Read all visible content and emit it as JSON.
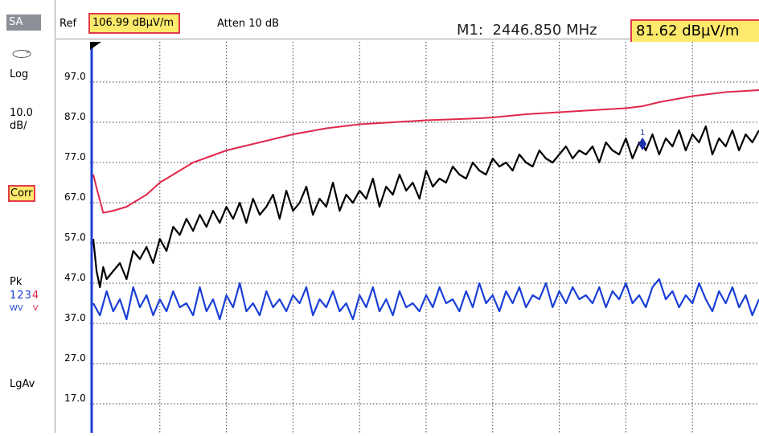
{
  "left_panel": {
    "mode_tab": "SA",
    "scale_type": "Log",
    "scale_value": "10.0",
    "scale_unit": "dB/",
    "correction": "Corr",
    "detector": "Pk",
    "traces": {
      "digits": [
        "1",
        "2",
        "3",
        "4"
      ],
      "digit_colors": [
        "#1a3fd6",
        "#1a3fd6",
        "#1a3fd6",
        "#e0284a"
      ],
      "modes": [
        "W",
        "V",
        "V"
      ],
      "mode_colors": [
        "#1a3fd6",
        "#1a3fd6",
        "#e0284a"
      ]
    },
    "averaging": "LgAv"
  },
  "header": {
    "ref_label": "Ref",
    "ref_value": "106.99 dBµV/m",
    "atten": "Atten 10 dB",
    "marker_label": "M1:",
    "marker_freq": "2446.850 MHz",
    "marker_amp": "81.62 dBµV/m"
  },
  "chart_data": {
    "type": "line",
    "y_ticks": [
      "97.0",
      "87.0",
      "77.0",
      "67.0",
      "57.0",
      "47.0",
      "37.0",
      "27.0",
      "17.0"
    ],
    "ylim": [
      12.0,
      102.0
    ],
    "xlim": [
      0,
      100
    ],
    "grid": true,
    "marker": {
      "name": "1",
      "x": 82.5,
      "y": 81.62
    },
    "series": [
      {
        "color": "#e0284a",
        "x": [
          0,
          0.6,
          1.5,
          3,
          5,
          8,
          10,
          15,
          20,
          25,
          30,
          35,
          40,
          45,
          50,
          55,
          58,
          60,
          65,
          70,
          75,
          80,
          82.5,
          85,
          90,
          95,
          100
        ],
        "values": [
          74,
          70,
          64.5,
          65,
          66,
          69,
          72,
          77,
          80,
          82,
          84,
          85.5,
          86.5,
          87,
          87.5,
          87.8,
          88,
          88.2,
          89,
          89.5,
          90,
          90.5,
          91,
          92,
          93.5,
          94.5,
          95
        ]
      },
      {
        "color": "#000000",
        "x": [
          0,
          0.5,
          1,
          1.5,
          2,
          3,
          4,
          5,
          6,
          7,
          8,
          9,
          10,
          11,
          12,
          13,
          14,
          15,
          16,
          17,
          18,
          19,
          20,
          21,
          22,
          23,
          24,
          25,
          26,
          27,
          28,
          29,
          30,
          31,
          32,
          33,
          34,
          35,
          36,
          37,
          38,
          39,
          40,
          41,
          42,
          43,
          44,
          45,
          46,
          47,
          48,
          49,
          50,
          51,
          52,
          53,
          54,
          55,
          56,
          57,
          58,
          59,
          60,
          61,
          62,
          63,
          64,
          65,
          66,
          67,
          68,
          69,
          70,
          71,
          72,
          73,
          74,
          75,
          76,
          77,
          78,
          79,
          80,
          81,
          82,
          82.5,
          83,
          84,
          85,
          86,
          87,
          88,
          89,
          90,
          91,
          92,
          93,
          94,
          95,
          96,
          97,
          98,
          99,
          100
        ],
        "values": [
          58,
          50,
          46,
          51,
          48,
          50,
          52,
          48,
          55,
          53,
          56,
          52,
          58,
          55,
          61,
          59,
          63,
          60,
          64,
          61,
          65,
          62,
          66,
          63,
          67,
          62,
          68,
          64,
          66,
          69,
          63,
          70,
          65,
          67,
          71,
          64,
          68,
          66,
          72,
          65,
          69,
          67,
          70,
          68,
          73,
          66,
          71,
          69,
          74,
          70,
          72,
          68,
          75,
          71,
          73,
          72,
          76,
          74,
          73,
          77,
          75,
          74,
          78,
          76,
          77,
          75,
          79,
          77,
          76,
          80,
          78,
          77,
          79,
          81,
          78,
          80,
          79,
          81,
          77,
          82,
          80,
          79,
          83,
          78,
          82,
          81.6,
          80,
          84,
          79,
          83,
          81,
          85,
          80,
          84,
          82,
          86,
          79,
          83,
          81,
          85,
          80,
          84,
          82,
          85
        ]
      },
      {
        "color": "#1a3fd6",
        "x": [
          0,
          1,
          2,
          3,
          4,
          5,
          6,
          7,
          8,
          9,
          10,
          11,
          12,
          13,
          14,
          15,
          16,
          17,
          18,
          19,
          20,
          21,
          22,
          23,
          24,
          25,
          26,
          27,
          28,
          29,
          30,
          31,
          32,
          33,
          34,
          35,
          36,
          37,
          38,
          39,
          40,
          41,
          42,
          43,
          44,
          45,
          46,
          47,
          48,
          49,
          50,
          51,
          52,
          53,
          54,
          55,
          56,
          57,
          58,
          59,
          60,
          61,
          62,
          63,
          64,
          65,
          66,
          67,
          68,
          69,
          70,
          71,
          72,
          73,
          74,
          75,
          76,
          77,
          78,
          79,
          80,
          81,
          82,
          83,
          84,
          85,
          86,
          87,
          88,
          89,
          90,
          91,
          92,
          93,
          94,
          95,
          96,
          97,
          98,
          99,
          100
        ],
        "values": [
          42,
          39,
          45,
          40,
          43,
          38,
          46,
          41,
          44,
          39,
          43,
          40,
          45,
          41,
          42,
          39,
          46,
          40,
          43,
          38,
          44,
          41,
          47,
          40,
          42,
          39,
          45,
          41,
          43,
          40,
          44,
          42,
          46,
          39,
          43,
          41,
          45,
          40,
          42,
          38,
          44,
          41,
          46,
          40,
          43,
          39,
          45,
          41,
          42,
          40,
          44,
          41,
          46,
          42,
          43,
          40,
          45,
          41,
          47,
          42,
          44,
          40,
          45,
          42,
          46,
          41,
          44,
          43,
          47,
          41,
          45,
          42,
          46,
          43,
          44,
          42,
          46,
          41,
          45,
          43,
          47,
          42,
          44,
          41,
          46,
          48,
          43,
          45,
          41,
          44,
          42,
          47,
          43,
          40,
          45,
          42,
          46,
          41,
          44,
          39,
          43
        ]
      }
    ]
  }
}
